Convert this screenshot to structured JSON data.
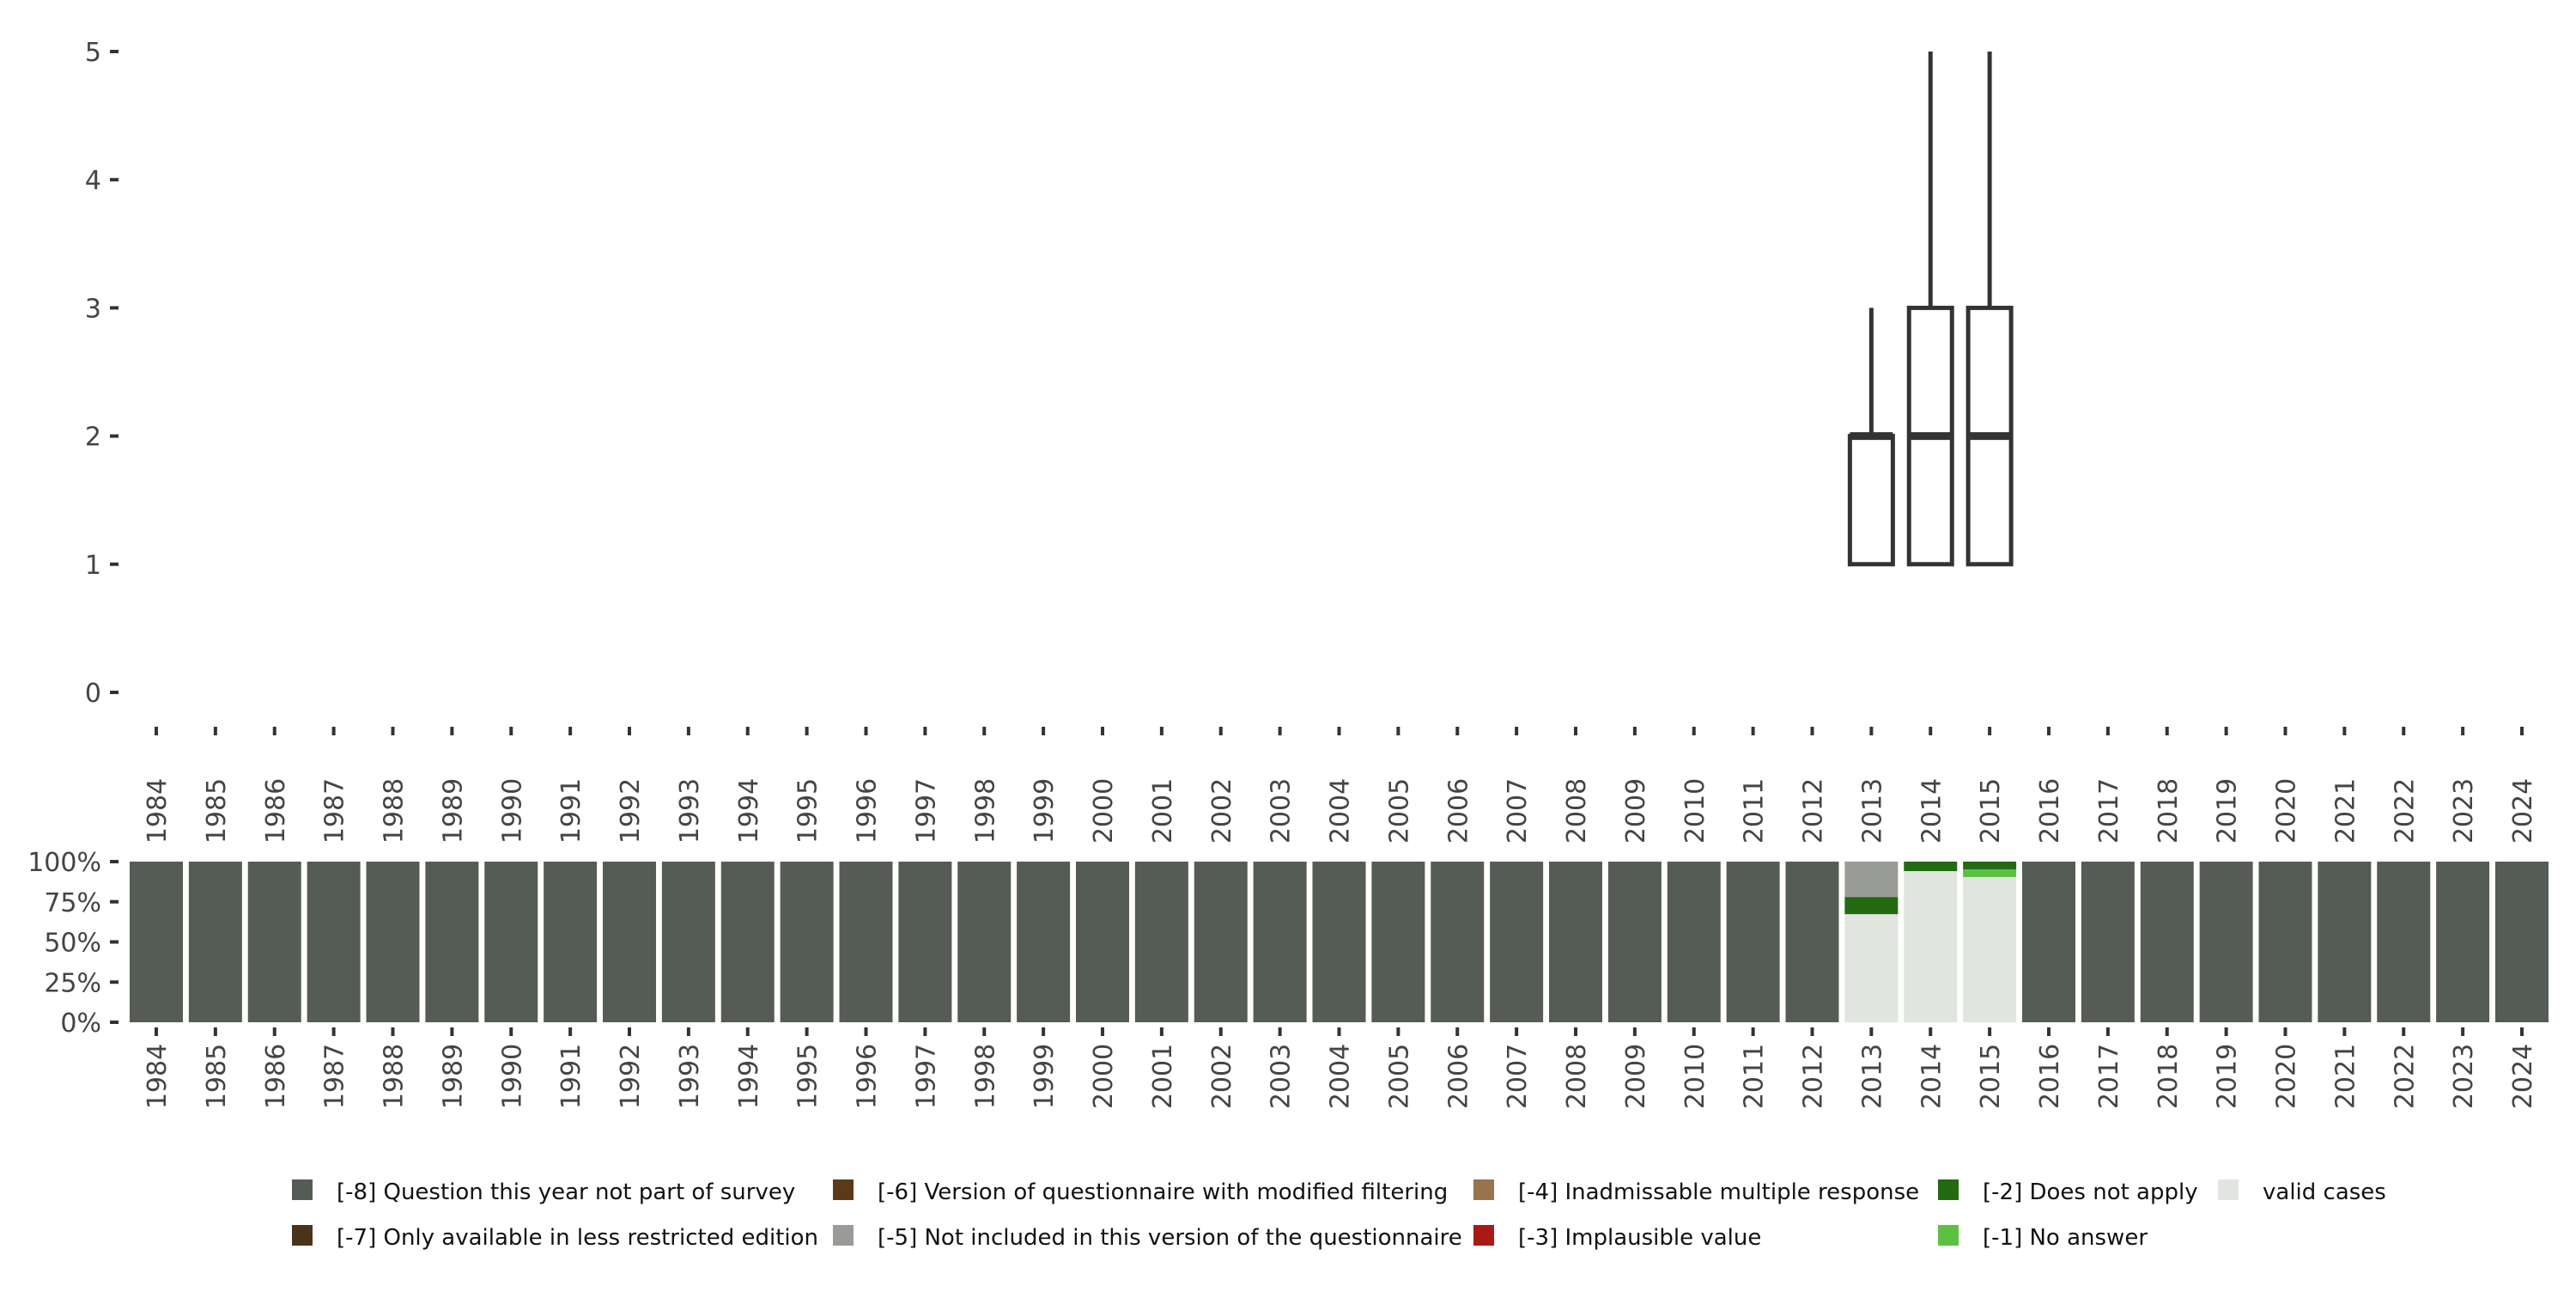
{
  "chart_data": [
    {
      "type": "boxplot",
      "title": "",
      "xlabel": "",
      "ylabel": "",
      "ylim": [
        0,
        5
      ],
      "yticks": [
        "0",
        "1",
        "2",
        "3",
        "4",
        "5"
      ],
      "years": [
        "1984",
        "1985",
        "1986",
        "1987",
        "1988",
        "1989",
        "1990",
        "1991",
        "1992",
        "1993",
        "1994",
        "1995",
        "1996",
        "1997",
        "1998",
        "1999",
        "2000",
        "2001",
        "2002",
        "2003",
        "2004",
        "2005",
        "2006",
        "2007",
        "2008",
        "2009",
        "2010",
        "2011",
        "2012",
        "2013",
        "2014",
        "2015",
        "2016",
        "2017",
        "2018",
        "2019",
        "2020",
        "2021",
        "2022",
        "2023",
        "2024"
      ],
      "boxes": [
        {
          "year": "2013",
          "min": 1,
          "q1": 1,
          "median": 2,
          "q3": 2,
          "max": 3
        },
        {
          "year": "2014",
          "min": 1,
          "q1": 1,
          "median": 2,
          "q3": 3,
          "max": 5
        },
        {
          "year": "2015",
          "min": 1,
          "q1": 1,
          "median": 2,
          "q3": 3,
          "max": 5
        }
      ]
    },
    {
      "type": "bar",
      "stacked": true,
      "ylim": [
        0,
        100
      ],
      "yticks": [
        "0%",
        "25%",
        "50%",
        "75%",
        "100%"
      ],
      "default_category": "-8",
      "overrides": {
        "2013": {
          "-5": 22,
          "-2": 10.7,
          "valid": 67.3
        },
        "2014": {
          "-2": 5.9,
          "valid": 94.1
        },
        "2015": {
          "-2": 4.8,
          "-1": 4.8,
          "valid": 90.4
        }
      },
      "stack_order": [
        "-8",
        "-7",
        "-6",
        "-5",
        "-4",
        "-3",
        "-2",
        "-1",
        "valid"
      ]
    }
  ],
  "legend": {
    "placement": "bottom",
    "items": [
      {
        "key": "-8",
        "label": "[-8] Question this year not part of survey",
        "color": "#555c55"
      },
      {
        "key": "-7",
        "label": "[-7] Only available in less restricted edition",
        "color": "#4b321a"
      },
      {
        "key": "-6",
        "label": "[-6] Version of questionnaire with modified filtering",
        "color": "#5a3a18"
      },
      {
        "key": "-5",
        "label": "[-5] Not included in this version of the questionnaire",
        "color": "#999c96"
      },
      {
        "key": "-4",
        "label": "[-4] Inadmissable multiple response",
        "color": "#98734d"
      },
      {
        "key": "-3",
        "label": "[-3] Implausible value",
        "color": "#a81a14"
      },
      {
        "key": "-2",
        "label": "[-2] Does not apply",
        "color": "#236a10"
      },
      {
        "key": "-1",
        "label": "[-1] No answer",
        "color": "#5cc142"
      },
      {
        "key": "valid",
        "label": "valid cases",
        "color": "#e0e5e0"
      }
    ]
  }
}
